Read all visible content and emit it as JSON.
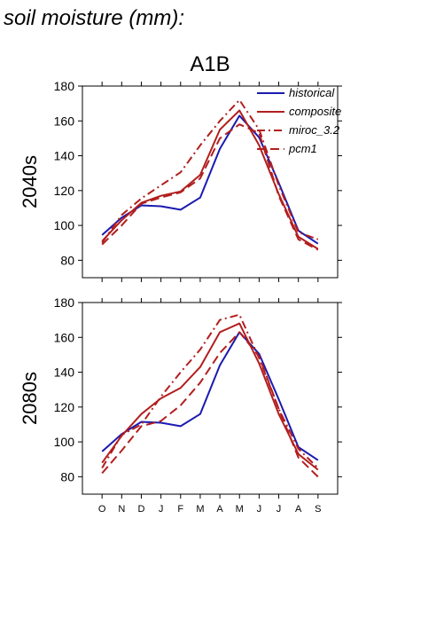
{
  "figure": {
    "title": "soil moisture (mm):",
    "panel_title": "A1B"
  },
  "colors": {
    "historical": "#1a1ab0",
    "scenario": "#b21e1e"
  },
  "chart_data": [
    {
      "type": "line",
      "row_label": "2040s",
      "categories": [
        "O",
        "N",
        "D",
        "J",
        "F",
        "M",
        "A",
        "M",
        "J",
        "J",
        "A",
        "S"
      ],
      "ylim": [
        70,
        180
      ],
      "yticks": [
        80,
        100,
        120,
        140,
        160,
        180
      ],
      "legend_placement": "top-right",
      "series": [
        {
          "name": "historical",
          "style": "solid",
          "color": "#1a1ab0",
          "values": [
            94.5,
            104.5,
            111.5,
            111,
            109,
            116,
            144,
            163,
            150.5,
            124.5,
            97,
            89.5
          ]
        },
        {
          "name": "composite",
          "style": "solid",
          "color": "#b21e1e",
          "values": [
            91,
            103,
            113,
            117,
            119.5,
            129,
            155,
            166,
            146,
            118,
            93.5,
            86.5
          ]
        },
        {
          "name": "miroc_3.2",
          "style": "dashdot",
          "color": "#b21e1e",
          "values": [
            90,
            106,
            115.5,
            123,
            130.5,
            146,
            160,
            172,
            155,
            123,
            96,
            92
          ]
        },
        {
          "name": "pcm1",
          "style": "dash",
          "color": "#b21e1e",
          "values": [
            89,
            100,
            112.5,
            116,
            119,
            127,
            150,
            158,
            153,
            117,
            92,
            86
          ]
        }
      ]
    },
    {
      "type": "line",
      "row_label": "2080s",
      "categories": [
        "O",
        "N",
        "D",
        "J",
        "F",
        "M",
        "A",
        "M",
        "J",
        "J",
        "A",
        "S"
      ],
      "ylim": [
        70,
        180
      ],
      "yticks": [
        80,
        100,
        120,
        140,
        160,
        180
      ],
      "series": [
        {
          "name": "historical",
          "style": "solid",
          "color": "#1a1ab0",
          "values": [
            94.5,
            104.5,
            111.5,
            111,
            109,
            116,
            144,
            163,
            150.5,
            124.5,
            97,
            89.5
          ]
        },
        {
          "name": "composite",
          "style": "solid",
          "color": "#b21e1e",
          "values": [
            88,
            103.5,
            116,
            125,
            131,
            143,
            163,
            168,
            145,
            116,
            93,
            84
          ]
        },
        {
          "name": "miroc_3.2",
          "style": "dashdot",
          "color": "#b21e1e",
          "values": [
            85,
            104,
            110,
            126,
            140,
            153,
            170,
            173,
            148,
            119,
            96,
            85
          ]
        },
        {
          "name": "pcm1",
          "style": "dash",
          "color": "#b21e1e",
          "values": [
            82,
            95,
            109,
            112,
            121,
            134,
            151,
            163,
            149,
            119,
            91,
            80
          ]
        }
      ]
    }
  ]
}
